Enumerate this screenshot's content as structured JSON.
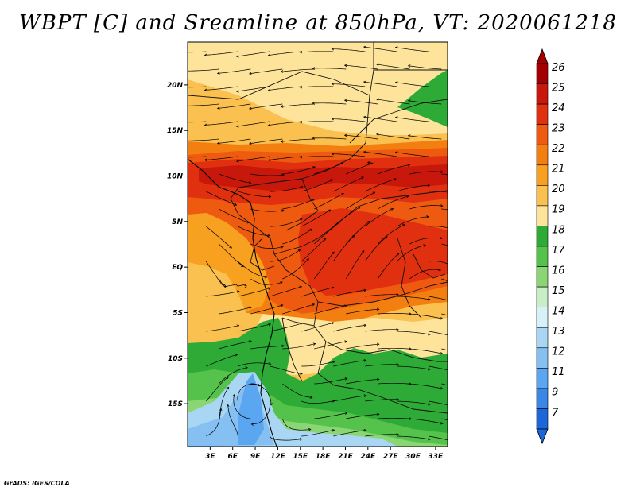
{
  "title": "WBPT [C] and Sreamline at 850hPa, VT: 2020061218",
  "footer": "GrADS: IGES/COLA",
  "map": {
    "lat_labels": [
      "20N",
      "15N",
      "10N",
      "5N",
      "EQ",
      "5S",
      "10S",
      "15S"
    ],
    "lon_labels": [
      "3E",
      "6E",
      "9E",
      "12E",
      "15E",
      "18E",
      "21E",
      "24E",
      "27E",
      "30E",
      "33E"
    ],
    "lat_values": [
      20,
      15,
      10,
      5,
      0,
      -5,
      -10,
      -15
    ],
    "lon_values": [
      3,
      6,
      9,
      12,
      15,
      18,
      21,
      24,
      27,
      30,
      33
    ],
    "lat_range": [
      -19.7,
      24.7
    ],
    "lon_range": [
      0,
      34.6
    ]
  },
  "colorbar": {
    "labels": [
      "26",
      "25",
      "24",
      "23",
      "22",
      "21",
      "20",
      "19",
      "18",
      "17",
      "16",
      "15",
      "14",
      "13",
      "12",
      "11",
      "9",
      "7"
    ],
    "colors": [
      "#a50000",
      "#c8170b",
      "#e0300f",
      "#ee5a10",
      "#f47f11",
      "#f8a020",
      "#fac050",
      "#fde49a",
      "#2eaa36",
      "#55c24b",
      "#8ad574",
      "#c8edc7",
      "#d8f0f8",
      "#a9d6f3",
      "#86bff2",
      "#5ba6f0",
      "#3a87e6",
      "#1b66d8"
    ],
    "top_color": "#a50000",
    "bottom_color": "#1b66d8"
  }
}
